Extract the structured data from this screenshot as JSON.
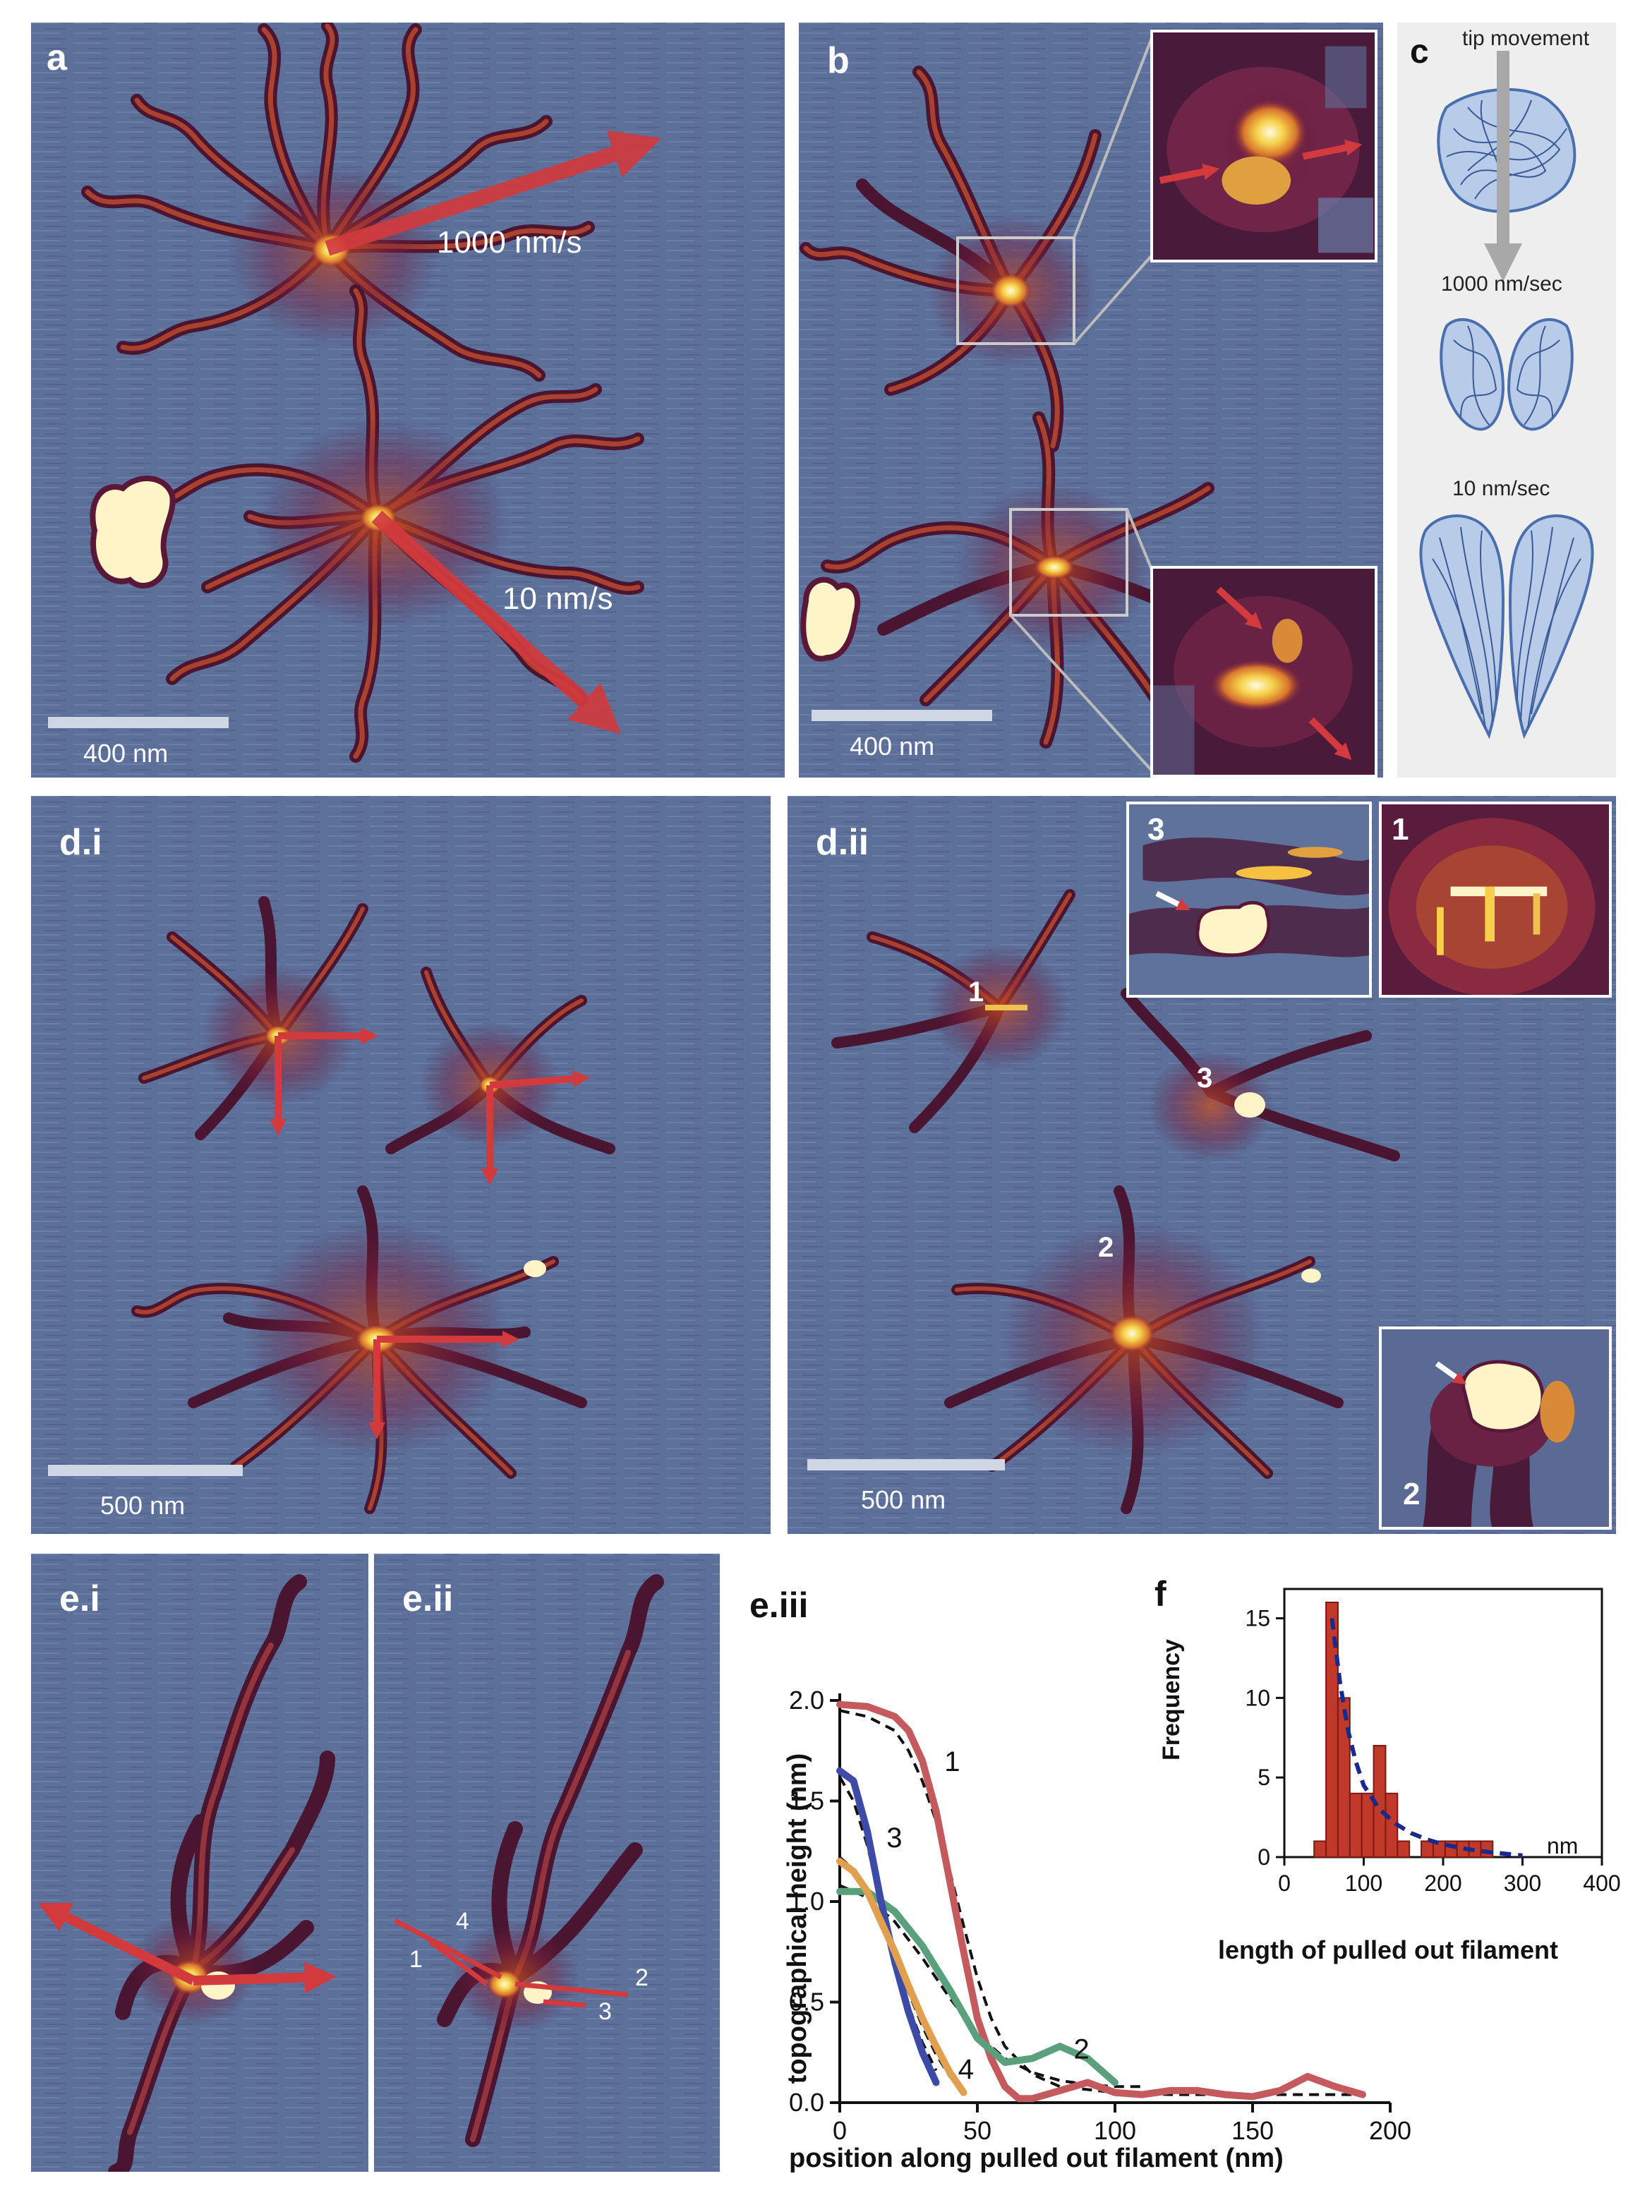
{
  "panels": {
    "a": {
      "label": "a",
      "scale": "400 nm",
      "arrow_fast": "1000 nm/s",
      "arrow_slow": "10 nm/s"
    },
    "b": {
      "label": "b",
      "scale": "400 nm"
    },
    "c": {
      "label": "c",
      "tip": "tip movement",
      "fast": "1000 nm/sec",
      "slow": "10 nm/sec"
    },
    "di": {
      "label": "d.i",
      "scale": "500 nm"
    },
    "dii": {
      "label": "d.ii",
      "scale": "500 nm",
      "markers": [
        "1",
        "3",
        "2"
      ],
      "insets": [
        "3",
        "1",
        "2"
      ]
    },
    "ei": {
      "label": "e.i"
    },
    "eii": {
      "label": "e.ii",
      "lines": [
        "4",
        "1",
        "2",
        "3"
      ]
    },
    "eiii": {
      "label": "e.iii"
    },
    "f": {
      "label": "f"
    }
  },
  "chart_data": [
    {
      "type": "line",
      "panel": "e.iii",
      "xlabel": "position along pulled out filament (nm)",
      "ylabel": "topographical height (nm)",
      "xlim": [
        0,
        200
      ],
      "ylim": [
        0,
        2.0
      ],
      "xticks": [
        "0",
        "50",
        "100",
        "150",
        "200"
      ],
      "yticks": [
        "0.0",
        "0.5",
        "1.0",
        "1.5",
        "2.0"
      ],
      "series": [
        {
          "name": "1",
          "color": "#c45a5e",
          "x": [
            0,
            10,
            20,
            25,
            30,
            35,
            40,
            45,
            50,
            55,
            60,
            65,
            70,
            80,
            90,
            100,
            110,
            120,
            130,
            140,
            150,
            160,
            170,
            180,
            190
          ],
          "y": [
            1.98,
            1.97,
            1.92,
            1.85,
            1.7,
            1.45,
            1.1,
            0.75,
            0.42,
            0.22,
            0.08,
            0.02,
            0.02,
            0.06,
            0.1,
            0.05,
            0.04,
            0.06,
            0.06,
            0.04,
            0.03,
            0.06,
            0.13,
            0.08,
            0.04
          ]
        },
        {
          "name": "2",
          "color": "#5aa07c",
          "x": [
            0,
            10,
            20,
            30,
            40,
            50,
            60,
            70,
            80,
            90,
            100
          ],
          "y": [
            1.05,
            1.05,
            0.95,
            0.78,
            0.56,
            0.32,
            0.2,
            0.22,
            0.28,
            0.22,
            0.1
          ]
        },
        {
          "name": "3",
          "color": "#3e4ba6",
          "x": [
            0,
            5,
            10,
            15,
            20,
            25,
            30,
            35
          ],
          "y": [
            1.65,
            1.6,
            1.35,
            1.0,
            0.7,
            0.45,
            0.25,
            0.1
          ]
        },
        {
          "name": "4",
          "color": "#e0a050",
          "x": [
            0,
            5,
            10,
            15,
            20,
            25,
            30,
            35,
            40,
            45
          ],
          "y": [
            1.2,
            1.15,
            1.05,
            0.9,
            0.75,
            0.58,
            0.42,
            0.28,
            0.15,
            0.05
          ]
        }
      ],
      "fits": [
        {
          "x": [
            0,
            10,
            20,
            25,
            30,
            35,
            40,
            45,
            50,
            55,
            60,
            70,
            80,
            100,
            120,
            150,
            190
          ],
          "y": [
            1.95,
            1.92,
            1.85,
            1.75,
            1.6,
            1.4,
            1.15,
            0.88,
            0.62,
            0.42,
            0.28,
            0.14,
            0.08,
            0.05,
            0.04,
            0.04,
            0.04
          ]
        },
        {
          "x": [
            0,
            10,
            20,
            30,
            40,
            50,
            60,
            70,
            80,
            90,
            100,
            110
          ],
          "y": [
            1.08,
            1.02,
            0.9,
            0.72,
            0.52,
            0.34,
            0.22,
            0.15,
            0.11,
            0.09,
            0.08,
            0.08
          ]
        },
        {
          "x": [
            0,
            5,
            10,
            15,
            20,
            25,
            30,
            35
          ],
          "y": [
            1.62,
            1.5,
            1.28,
            1.0,
            0.72,
            0.48,
            0.3,
            0.16
          ]
        },
        {
          "x": [
            0,
            5,
            10,
            15,
            20,
            25,
            30,
            35,
            40,
            45
          ],
          "y": [
            1.22,
            1.16,
            1.05,
            0.9,
            0.72,
            0.55,
            0.38,
            0.24,
            0.13,
            0.06
          ]
        }
      ]
    },
    {
      "type": "bar",
      "panel": "f",
      "xlabel": "length of pulled out filament",
      "xunit": "nm",
      "ylabel": "Frequency",
      "xlim": [
        0,
        400
      ],
      "ylim": [
        0,
        16
      ],
      "xticks": [
        "0",
        "100",
        "200",
        "300",
        "400"
      ],
      "yticks": [
        "0",
        "5",
        "10",
        "15"
      ],
      "bin_width": 15,
      "bins": [
        {
          "x": 45,
          "y": 1
        },
        {
          "x": 60,
          "y": 16
        },
        {
          "x": 75,
          "y": 10
        },
        {
          "x": 90,
          "y": 4
        },
        {
          "x": 105,
          "y": 4
        },
        {
          "x": 120,
          "y": 7
        },
        {
          "x": 135,
          "y": 4
        },
        {
          "x": 150,
          "y": 1
        },
        {
          "x": 180,
          "y": 1
        },
        {
          "x": 195,
          "y": 1
        },
        {
          "x": 210,
          "y": 1
        },
        {
          "x": 225,
          "y": 1
        },
        {
          "x": 240,
          "y": 1
        },
        {
          "x": 255,
          "y": 1
        }
      ],
      "fit": {
        "x": [
          60,
          70,
          80,
          90,
          100,
          120,
          140,
          160,
          180,
          200,
          230,
          260,
          300
        ],
        "y": [
          15,
          11,
          8,
          6,
          4.5,
          3,
          2.1,
          1.5,
          1.1,
          0.8,
          0.5,
          0.3,
          0.1
        ]
      }
    }
  ]
}
